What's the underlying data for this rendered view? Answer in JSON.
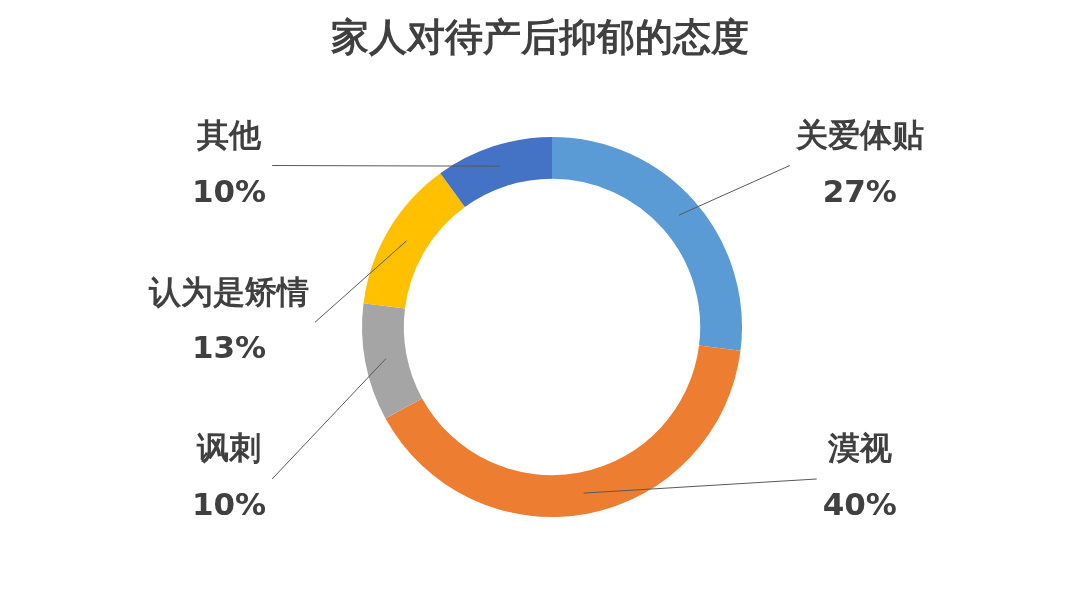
{
  "chart_data": {
    "type": "donut",
    "title": "家人对待产后抑郁的态度",
    "categories": [
      "关爱体贴",
      "漠视",
      "讽刺",
      "认为是矫情",
      "其他"
    ],
    "values": [
      27,
      40,
      10,
      13,
      10
    ],
    "value_labels": [
      "27%",
      "40%",
      "10%",
      "13%",
      "10%"
    ],
    "colors": [
      "#5b9bd5",
      "#ed7d31",
      "#a5a5a5",
      "#ffc000",
      "#4472c4"
    ],
    "legend": false
  }
}
